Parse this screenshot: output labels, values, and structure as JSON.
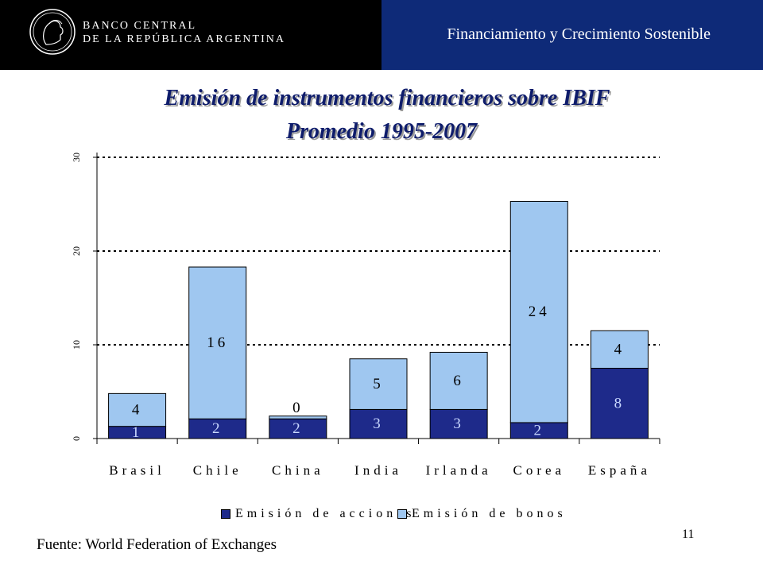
{
  "header": {
    "bank_line1": "BANCO CENTRAL",
    "bank_line2": "DE LA REPÚBLICA ARGENTINA",
    "section_title": "Financiamiento y Crecimiento Sostenible"
  },
  "colors": {
    "acciones": "#1e2a8a",
    "bonos": "#9fc7f0",
    "title": "#0e1c6b",
    "header_right": "#0e2a78"
  },
  "chart_data": {
    "type": "bar",
    "stacked": true,
    "title": "Emisión de instrumentos financieros sobre IBIF",
    "subtitle": "Promedio 1995-2007",
    "categories": [
      "Brasil",
      "Chile",
      "China",
      "India",
      "Irlanda",
      "Corea",
      "España"
    ],
    "series": [
      {
        "name": "Emisión de acciones",
        "values": [
          1.3,
          2.1,
          2.1,
          3.1,
          3.1,
          1.7,
          7.5
        ],
        "labels": [
          "1",
          "2",
          "2",
          "3",
          "3",
          "2",
          "8"
        ]
      },
      {
        "name": "Emisión de bonos",
        "values": [
          3.5,
          16.2,
          0.3,
          5.4,
          6.1,
          23.6,
          4.0
        ],
        "labels": [
          "4",
          "16",
          "0",
          "5",
          "6",
          "24",
          "4"
        ]
      }
    ],
    "ylim": [
      0,
      30
    ],
    "yticks": [
      "0",
      "10",
      "20",
      "30"
    ],
    "ytick_values": [
      0,
      10,
      20,
      30
    ],
    "grid": true,
    "legend_position": "bottom"
  },
  "footer": {
    "source": "Fuente: World Federation of Exchanges",
    "page_number": "11"
  }
}
